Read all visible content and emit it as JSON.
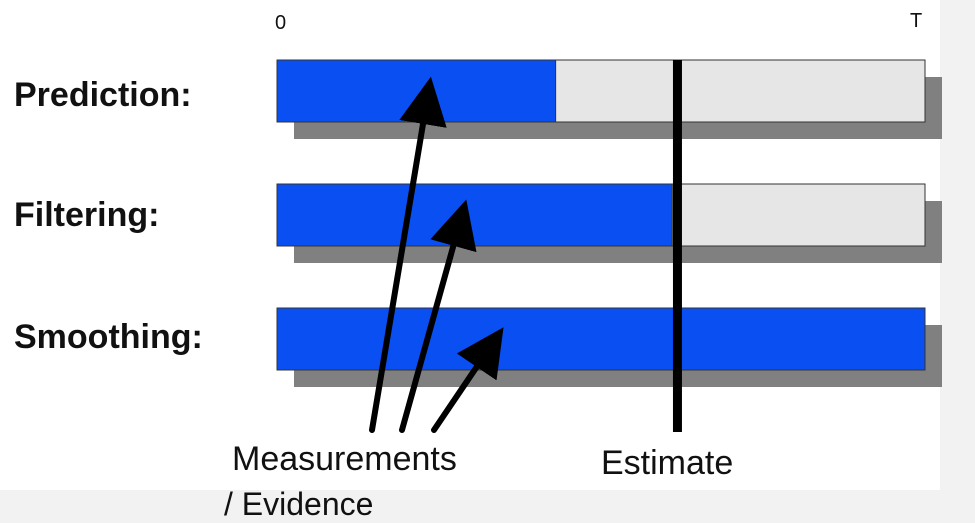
{
  "axis": {
    "start_label": "0",
    "end_label": "T"
  },
  "rows": [
    {
      "label": "Prediction:",
      "observed_fraction": 0.43
    },
    {
      "label": "Filtering:",
      "observed_fraction": 0.61
    },
    {
      "label": "Smoothing:",
      "observed_fraction": 1.0
    }
  ],
  "estimate": {
    "label": "Estimate",
    "position_fraction": 0.618
  },
  "measurements": {
    "label": "Measurements",
    "label_suffix": "/ Evidence"
  },
  "colors": {
    "observed": "#0a4ff2",
    "unobserved": "#e6e6e6",
    "shadow": "#808080",
    "estimate_line": "#000000",
    "arrow": "#000000"
  }
}
